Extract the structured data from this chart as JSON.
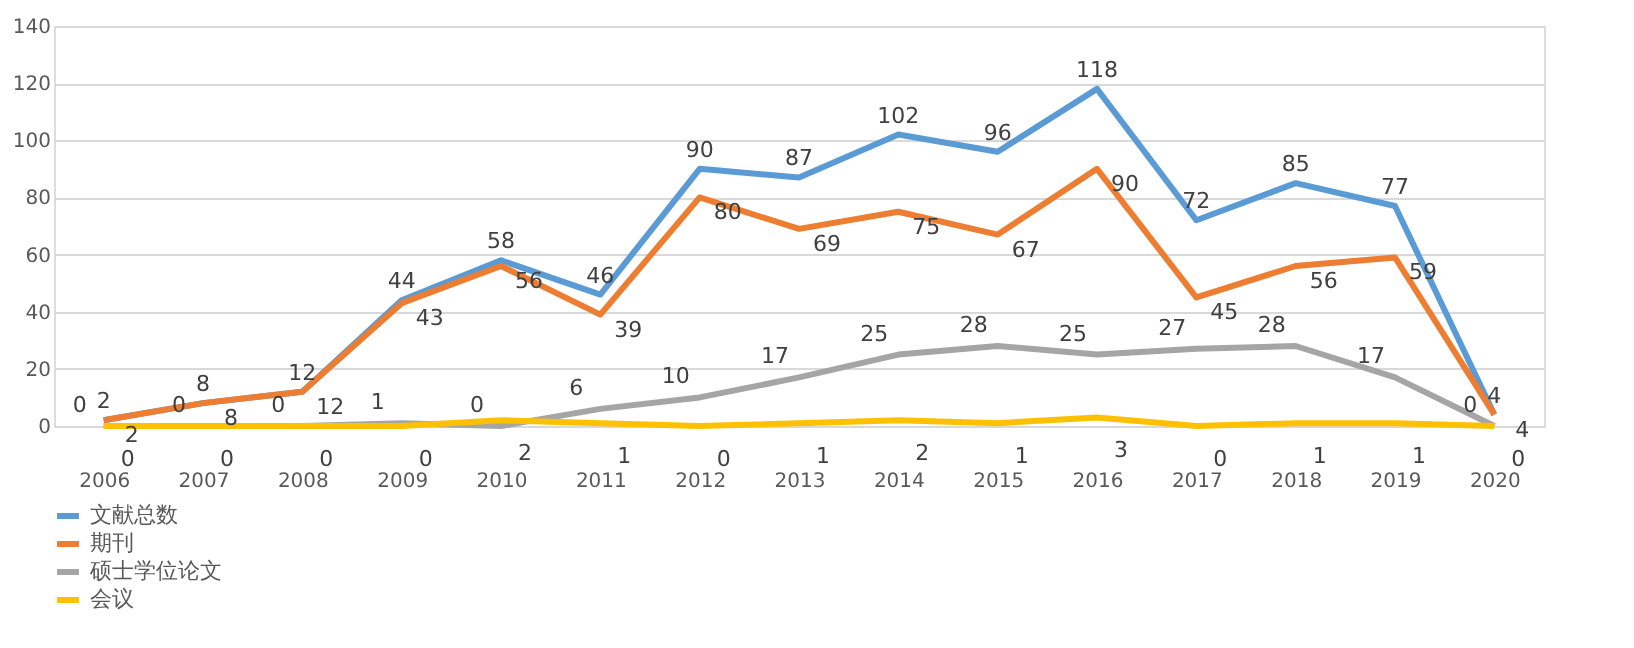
{
  "chart_data": {
    "type": "line",
    "categories": [
      "2006",
      "2007",
      "2008",
      "2009",
      "2010",
      "2011",
      "2012",
      "2013",
      "2014",
      "2015",
      "2016",
      "2017",
      "2018",
      "2019",
      "2020"
    ],
    "series": [
      {
        "name": "文献总数",
        "color": "#5b9bd5",
        "values": [
          2,
          8,
          12,
          44,
          58,
          46,
          90,
          87,
          102,
          96,
          118,
          72,
          85,
          77,
          4
        ]
      },
      {
        "name": "期刊",
        "color": "#ed7d31",
        "values": [
          2,
          8,
          12,
          43,
          56,
          39,
          80,
          69,
          75,
          67,
          90,
          45,
          56,
          59,
          4
        ]
      },
      {
        "name": "硕士学位论文",
        "color": "#a5a5a5",
        "values": [
          0,
          0,
          0,
          1,
          0,
          6,
          10,
          17,
          25,
          28,
          25,
          27,
          28,
          17,
          0
        ]
      },
      {
        "name": "会议",
        "color": "#ffc000",
        "values": [
          0,
          0,
          0,
          0,
          2,
          1,
          0,
          1,
          2,
          1,
          3,
          0,
          1,
          1,
          0
        ]
      }
    ],
    "ylim": [
      0,
      140
    ],
    "yticks": [
      0,
      20,
      40,
      60,
      80,
      100,
      120,
      140
    ],
    "grid": "y",
    "legend": "bottom",
    "data_labels": true,
    "marker": "none",
    "line_style": "solid"
  }
}
